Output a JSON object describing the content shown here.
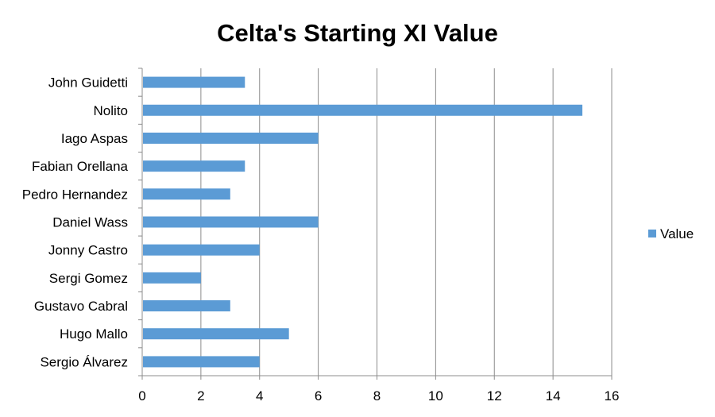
{
  "chart_data": {
    "type": "bar",
    "orientation": "horizontal",
    "title": "Celta's Starting XI Value",
    "categories": [
      "John Guidetti",
      "Nolito",
      "Iago Aspas",
      "Fabian Orellana",
      "Pedro Hernandez",
      "Daniel Wass",
      "Jonny Castro",
      "Sergi Gomez",
      "Gustavo Cabral",
      "Hugo Mallo",
      "Sergio Álvarez"
    ],
    "series": [
      {
        "name": "Value",
        "values": [
          3.5,
          15,
          6,
          3.5,
          3,
          6,
          4,
          2,
          3,
          5,
          4
        ]
      }
    ],
    "xlim": [
      0,
      16
    ],
    "x_ticks": [
      0,
      2,
      4,
      6,
      8,
      10,
      12,
      14,
      16
    ],
    "grid": "vertical",
    "legend_position": "right",
    "bar_color": "#5b9bd5"
  }
}
